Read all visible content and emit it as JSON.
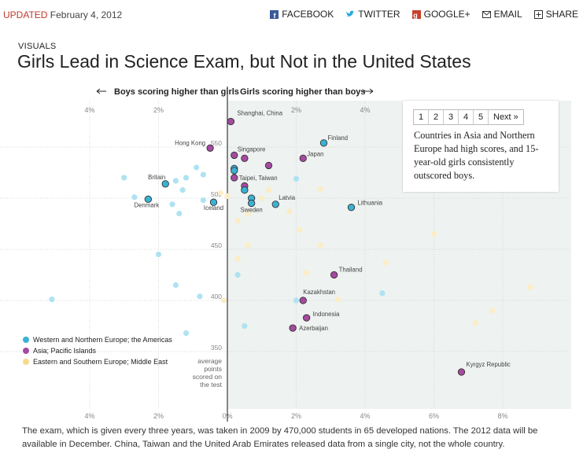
{
  "header": {
    "updated_label": "UPDATED",
    "date": "February 4, 2012",
    "share": [
      {
        "label": "FACEBOOK",
        "icon": "facebook-icon"
      },
      {
        "label": "TWITTER",
        "icon": "twitter-icon"
      },
      {
        "label": "GOOGLE+",
        "icon": "google-plus-icon"
      },
      {
        "label": "EMAIL",
        "icon": "email-icon"
      },
      {
        "label": "SHARE",
        "icon": "share-icon"
      }
    ]
  },
  "section": "VISUALS",
  "headline": "Girls Lead in Science Exam, but Not in the United States",
  "panel": {
    "pages": [
      "1",
      "2",
      "3",
      "4",
      "5",
      "Next »"
    ],
    "active_page": "2",
    "text": "Countries in Asia and Northern Europe had high scores, and 15-year-old girls consistently outscored boys."
  },
  "caption": "The exam, which is given every three years, was taken in 2009 by 470,000 students in 65 developed nations. The 2012 data will be available in December. China, Taiwan and the United Arab Emirates released data from a single city, not the whole country.",
  "chart_data": {
    "type": "scatter",
    "direction_labels": {
      "left": "Boys scoring higher than girls",
      "right": "Girls scoring higher than boys"
    },
    "xlim": [
      -6.5,
      10
    ],
    "ylim": [
      300,
      585
    ],
    "x_ticks": [
      -4,
      -2,
      0,
      2,
      4,
      6,
      8
    ],
    "x_tick_labels_top": [
      "4%",
      "2%",
      "",
      "2%",
      "4%"
    ],
    "x_tick_labels_bottom": [
      "4%",
      "2%",
      "0%",
      "2%",
      "4%",
      "6%",
      "8%"
    ],
    "y_ticks": [
      350,
      400,
      450,
      500,
      550
    ],
    "y_axis_note": [
      "average",
      "points",
      "scored on",
      "the test"
    ],
    "colors": {
      "western": "#3ab2d4",
      "asia": "#a54aa0",
      "eastern": "#f6d98a",
      "western_pale": "#aee3f2",
      "eastern_pale": "#fbeec6"
    },
    "legend": [
      {
        "key": "western",
        "label": "Western and Northern Europe; the Americas"
      },
      {
        "key": "asia",
        "label": "Asia; Pacific Islands"
      },
      {
        "key": "eastern",
        "label": "Eastern and Southern Europe; Middle East"
      }
    ],
    "labeled_points": [
      {
        "name": "Shanghai, China",
        "x": 0.1,
        "y": 575,
        "group": "asia"
      },
      {
        "name": "Finland",
        "x": 2.8,
        "y": 554,
        "group": "western"
      },
      {
        "name": "Hong Kong",
        "x": -0.5,
        "y": 549,
        "group": "asia"
      },
      {
        "name": "Singapore",
        "x": 0.2,
        "y": 542,
        "group": "asia"
      },
      {
        "name": "Japan",
        "x": 2.2,
        "y": 539,
        "group": "asia"
      },
      {
        "name": "",
        "x": 0.5,
        "y": 539,
        "group": "asia"
      },
      {
        "name": "",
        "x": 1.2,
        "y": 532,
        "group": "asia"
      },
      {
        "name": "",
        "x": 0.2,
        "y": 529,
        "group": "western"
      },
      {
        "name": "",
        "x": 0.2,
        "y": 527,
        "group": "western"
      },
      {
        "name": "Taipei, Taiwan",
        "x": 0.2,
        "y": 520,
        "group": "asia"
      },
      {
        "name": "Britain",
        "x": -1.8,
        "y": 514,
        "group": "western"
      },
      {
        "name": "",
        "x": 0.5,
        "y": 512,
        "group": "asia"
      },
      {
        "name": "",
        "x": 0.5,
        "y": 508,
        "group": "western"
      },
      {
        "name": "Denmark",
        "x": -2.3,
        "y": 499,
        "group": "western"
      },
      {
        "name": "",
        "x": 0.7,
        "y": 500,
        "group": "western"
      },
      {
        "name": "Iceland",
        "x": -0.4,
        "y": 496,
        "group": "western"
      },
      {
        "name": "Latvia",
        "x": 1.4,
        "y": 494,
        "group": "western"
      },
      {
        "name": "Sweden",
        "x": 0.7,
        "y": 495,
        "group": "western"
      },
      {
        "name": "Lithuania",
        "x": 3.6,
        "y": 491,
        "group": "western"
      },
      {
        "name": "Thailand",
        "x": 3.1,
        "y": 425,
        "group": "asia"
      },
      {
        "name": "Kazakhstan",
        "x": 2.2,
        "y": 400,
        "group": "asia"
      },
      {
        "name": "Indonesia",
        "x": 2.3,
        "y": 383,
        "group": "asia"
      },
      {
        "name": "Azerbaijan",
        "x": 1.9,
        "y": 373,
        "group": "asia"
      },
      {
        "name": "Kyrgyz Republic",
        "x": 6.8,
        "y": 330,
        "group": "asia"
      }
    ],
    "background_points": [
      {
        "x": -3.0,
        "y": 520,
        "group": "western"
      },
      {
        "x": -2.7,
        "y": 501,
        "group": "western"
      },
      {
        "x": -1.5,
        "y": 517,
        "group": "western"
      },
      {
        "x": -1.2,
        "y": 520,
        "group": "western"
      },
      {
        "x": -0.9,
        "y": 530,
        "group": "western"
      },
      {
        "x": -0.7,
        "y": 523,
        "group": "western"
      },
      {
        "x": -1.3,
        "y": 508,
        "group": "western"
      },
      {
        "x": -1.6,
        "y": 494,
        "group": "western"
      },
      {
        "x": -1.4,
        "y": 485,
        "group": "western"
      },
      {
        "x": -0.7,
        "y": 498,
        "group": "western"
      },
      {
        "x": 2.0,
        "y": 519,
        "group": "western"
      },
      {
        "x": -2.0,
        "y": 445,
        "group": "western"
      },
      {
        "x": 0.3,
        "y": 425,
        "group": "western"
      },
      {
        "x": -1.5,
        "y": 415,
        "group": "western"
      },
      {
        "x": -0.8,
        "y": 404,
        "group": "western"
      },
      {
        "x": -5.1,
        "y": 401,
        "group": "western"
      },
      {
        "x": 2.0,
        "y": 400,
        "group": "western"
      },
      {
        "x": 4.5,
        "y": 407,
        "group": "western"
      },
      {
        "x": 0.5,
        "y": 375,
        "group": "western"
      },
      {
        "x": -1.2,
        "y": 368,
        "group": "western"
      },
      {
        "x": 0.0,
        "y": 502,
        "group": "eastern"
      },
      {
        "x": -0.2,
        "y": 505,
        "group": "eastern"
      },
      {
        "x": 0.6,
        "y": 485,
        "group": "eastern"
      },
      {
        "x": 1.0,
        "y": 500,
        "group": "eastern"
      },
      {
        "x": 1.2,
        "y": 508,
        "group": "eastern"
      },
      {
        "x": 1.8,
        "y": 487,
        "group": "eastern"
      },
      {
        "x": 2.7,
        "y": 509,
        "group": "eastern"
      },
      {
        "x": 0.3,
        "y": 478,
        "group": "eastern"
      },
      {
        "x": 2.1,
        "y": 469,
        "group": "eastern"
      },
      {
        "x": 2.7,
        "y": 454,
        "group": "eastern"
      },
      {
        "x": 0.6,
        "y": 454,
        "group": "eastern"
      },
      {
        "x": 0.3,
        "y": 441,
        "group": "eastern"
      },
      {
        "x": 2.3,
        "y": 427,
        "group": "eastern"
      },
      {
        "x": 4.6,
        "y": 437,
        "group": "eastern"
      },
      {
        "x": 6.0,
        "y": 465,
        "group": "eastern"
      },
      {
        "x": 3.2,
        "y": 401,
        "group": "eastern"
      },
      {
        "x": 8.8,
        "y": 413,
        "group": "eastern"
      },
      {
        "x": 7.7,
        "y": 390,
        "group": "eastern"
      },
      {
        "x": 7.2,
        "y": 378,
        "group": "eastern"
      },
      {
        "x": -0.1,
        "y": 400,
        "group": "eastern"
      }
    ]
  }
}
